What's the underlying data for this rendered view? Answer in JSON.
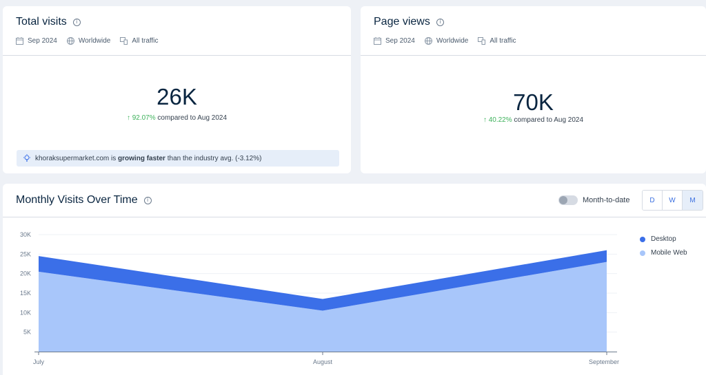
{
  "filters": {
    "date": "Sep 2024",
    "region": "Worldwide",
    "traffic": "All traffic"
  },
  "visits_card": {
    "title": "Total visits",
    "value": "26K",
    "change": "↑ 92.07%",
    "change_text": " compared to Aug 2024",
    "insight": {
      "domain": "khoraksupermarket.com",
      "pre": " is ",
      "bold": "growing faster",
      "post": " than the industry avg. (-3.12%)"
    }
  },
  "pageviews_card": {
    "title": "Page views",
    "value": "70K",
    "change": "↑ 40.22%",
    "change_text": " compared to Aug 2024"
  },
  "chart_card": {
    "title": "Monthly Visits Over Time",
    "toggle_label": "Month-to-date",
    "granularity": [
      "D",
      "W",
      "M"
    ],
    "active_granularity": "M"
  },
  "colors": {
    "desktop": "#3b6fe8",
    "mobile": "#a8c6fa",
    "up": "#3db15b"
  },
  "chart_data": {
    "type": "area",
    "stacked": true,
    "categories": [
      "July",
      "August",
      "September"
    ],
    "series": [
      {
        "name": "Mobile Web",
        "values": [
          20500,
          10500,
          23000
        ]
      },
      {
        "name": "Desktop",
        "values": [
          4000,
          3000,
          3000
        ]
      }
    ],
    "ylim": [
      0,
      30000
    ],
    "yticks": [
      0,
      5000,
      10000,
      15000,
      20000,
      25000,
      30000
    ],
    "ytick_labels": [
      "",
      "5K",
      "10K",
      "15K",
      "20K",
      "25K",
      "30K"
    ],
    "legend": [
      "Desktop",
      "Mobile Web"
    ],
    "legend_position": "right",
    "grid": true
  }
}
